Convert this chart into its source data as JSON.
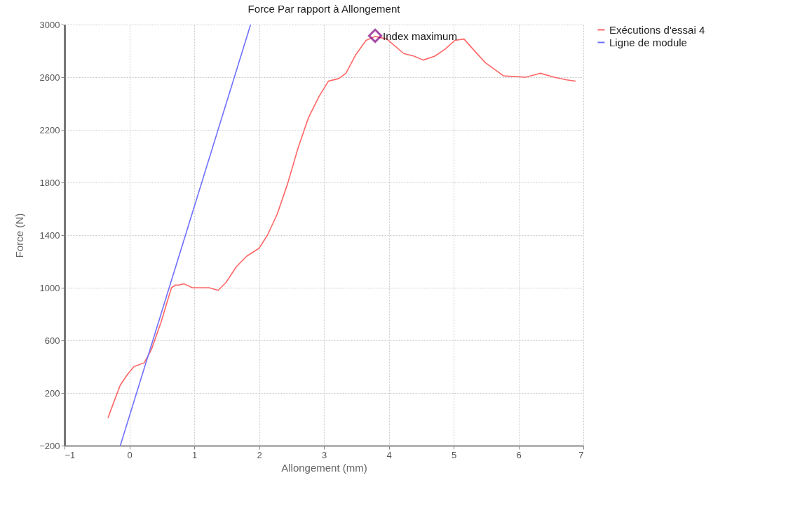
{
  "chart_data": {
    "type": "line",
    "title": "Force Par rapport à Allongement",
    "xlabel": "Allongement (mm)",
    "ylabel": "Force (N)",
    "xlim": [
      -1,
      7
    ],
    "xticks": [
      -1,
      0,
      1,
      2,
      3,
      4,
      5,
      6,
      7
    ],
    "ylim": [
      -200,
      3000
    ],
    "yticks": [
      -200,
      200,
      600,
      1000,
      1400,
      1800,
      2200,
      2600,
      3000
    ],
    "grid": true,
    "legend": "top right",
    "line_style": "solid",
    "series": [
      {
        "name": "Exécutions d'essai 4",
        "color": "#ff6666",
        "x": [
          -0.33,
          -0.24,
          -0.14,
          -0.03,
          0.07,
          0.23,
          0.34,
          0.49,
          0.6,
          0.65,
          0.71,
          0.76,
          0.84,
          0.97,
          1.13,
          1.23,
          1.37,
          1.49,
          1.65,
          1.81,
          2.0,
          2.13,
          2.28,
          2.44,
          2.6,
          2.76,
          2.92,
          3.07,
          3.23,
          3.34,
          3.49,
          3.65,
          3.79,
          3.97,
          4.23,
          4.39,
          4.53,
          4.71,
          4.86,
          5.02,
          5.16,
          5.34,
          5.49,
          5.77,
          6.11,
          6.34,
          6.55,
          6.74,
          6.88
        ],
        "values": [
          10,
          130,
          260,
          340,
          400,
          430,
          530,
          740,
          920,
          1000,
          1020,
          1020,
          1030,
          1000,
          1000,
          1000,
          980,
          1040,
          1160,
          1240,
          1300,
          1400,
          1560,
          1790,
          2060,
          2290,
          2450,
          2570,
          2590,
          2630,
          2770,
          2880,
          2910,
          2890,
          2780,
          2760,
          2730,
          2760,
          2810,
          2880,
          2890,
          2790,
          2710,
          2610,
          2600,
          2630,
          2600,
          2580,
          2570
        ]
      },
      {
        "name": "Ligne de module",
        "color": "#7070ff",
        "x": [
          -0.14,
          1.87
        ],
        "values": [
          -200,
          3000
        ]
      },
      {
        "name": "Index maximum",
        "type": "scatter",
        "marker": "diamond",
        "color": "#800080",
        "x": [
          3.79
        ],
        "values": [
          2915
        ]
      }
    ]
  }
}
